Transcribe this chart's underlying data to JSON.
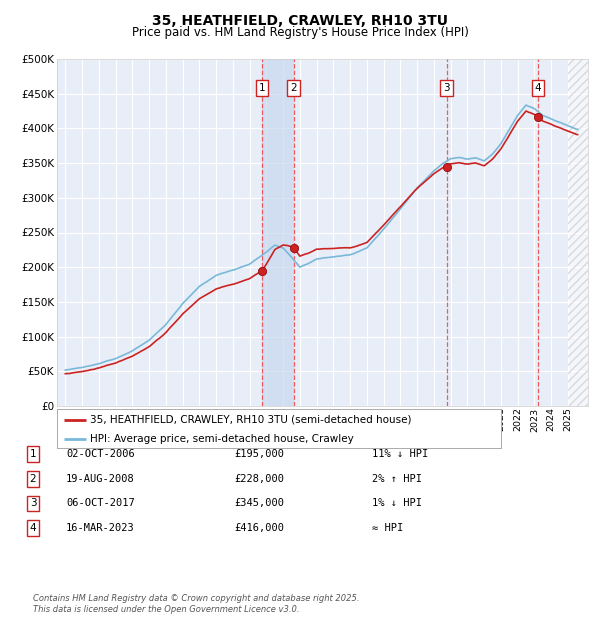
{
  "title": "35, HEATHFIELD, CRAWLEY, RH10 3TU",
  "subtitle": "Price paid vs. HM Land Registry's House Price Index (HPI)",
  "ylim": [
    0,
    500000
  ],
  "yticks": [
    0,
    50000,
    100000,
    150000,
    200000,
    250000,
    300000,
    350000,
    400000,
    450000,
    500000
  ],
  "ytick_labels": [
    "£0",
    "£50K",
    "£100K",
    "£150K",
    "£200K",
    "£250K",
    "£300K",
    "£350K",
    "£400K",
    "£450K",
    "£500K"
  ],
  "xlim_start": 1994.5,
  "xlim_end": 2026.2,
  "background_color": "#ffffff",
  "plot_bg_color": "#e8eef8",
  "grid_color": "#ffffff",
  "hpi_color": "#7ab8d9",
  "price_color": "#cc2222",
  "legend_label_price": "35, HEATHFIELD, CRAWLEY, RH10 3TU (semi-detached house)",
  "legend_label_hpi": "HPI: Average price, semi-detached house, Crawley",
  "transactions": [
    {
      "num": 1,
      "date": "02-OCT-2006",
      "year": 2006.75,
      "price": 195000,
      "hpi_rel": "11% ↓ HPI"
    },
    {
      "num": 2,
      "date": "19-AUG-2008",
      "year": 2008.63,
      "price": 228000,
      "hpi_rel": "2% ↑ HPI"
    },
    {
      "num": 3,
      "date": "06-OCT-2017",
      "year": 2017.76,
      "price": 345000,
      "hpi_rel": "1% ↓ HPI"
    },
    {
      "num": 4,
      "date": "16-MAR-2023",
      "year": 2023.21,
      "price": 416000,
      "hpi_rel": "≈ HPI"
    }
  ],
  "highlight_band": [
    2006.75,
    2008.63
  ],
  "hatch_start": 2025.0,
  "hatch_end": 2026.5,
  "footer": "Contains HM Land Registry data © Crown copyright and database right 2025.\nThis data is licensed under the Open Government Licence v3.0."
}
